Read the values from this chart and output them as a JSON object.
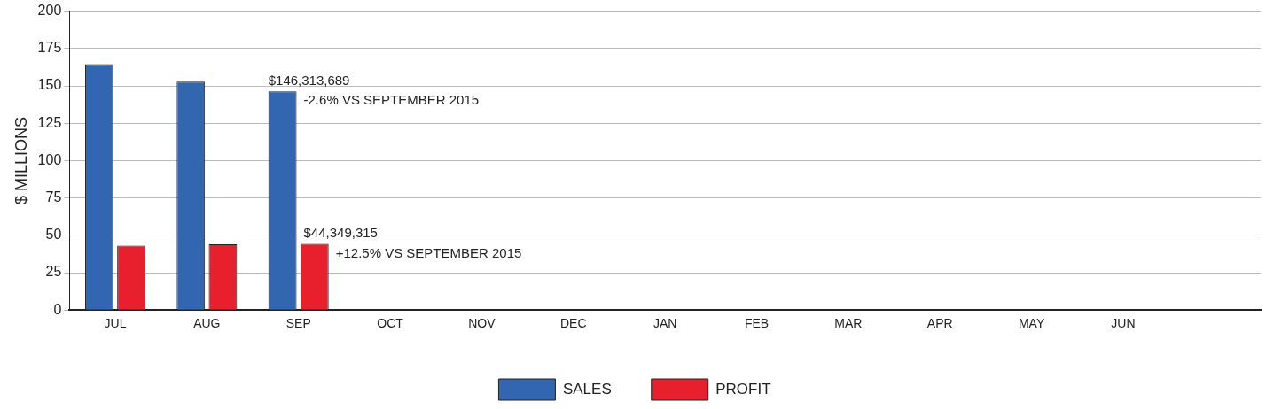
{
  "chart_data": {
    "type": "bar",
    "ylabel": "$ MILLIONS",
    "categories": [
      "JUL",
      "AUG",
      "SEP",
      "OCT",
      "NOV",
      "DEC",
      "JAN",
      "FEB",
      "MAR",
      "APR",
      "MAY",
      "JUN",
      null
    ],
    "series": [
      {
        "name": "SALES",
        "color": "#3366b0",
        "values": [
          164.5,
          152.8,
          146.3,
          null,
          null,
          null,
          null,
          null,
          null,
          null,
          null,
          null,
          null
        ]
      },
      {
        "name": "PROFIT",
        "color": "#e8202e",
        "values": [
          43,
          44,
          44.3,
          null,
          null,
          null,
          null,
          null,
          null,
          null,
          null,
          null,
          null
        ]
      }
    ],
    "ylim": [
      0,
      200
    ],
    "yticks": [
      0,
      25,
      50,
      75,
      100,
      125,
      150,
      175,
      200
    ],
    "grid": "y",
    "legend": "bottom",
    "annotations": [
      {
        "text": "$146,313,689",
        "x": "SEP",
        "y": 146.3
      },
      {
        "text": "-2.6% VS SEPTEMBER 2015",
        "x": "SEP",
        "y": 133
      },
      {
        "text": "$44,349,315",
        "x": "SEP",
        "y": 44.3
      },
      {
        "text": "+12.5% VS SEPTEMBER 2015",
        "x": "SEP",
        "y": 31
      }
    ]
  }
}
